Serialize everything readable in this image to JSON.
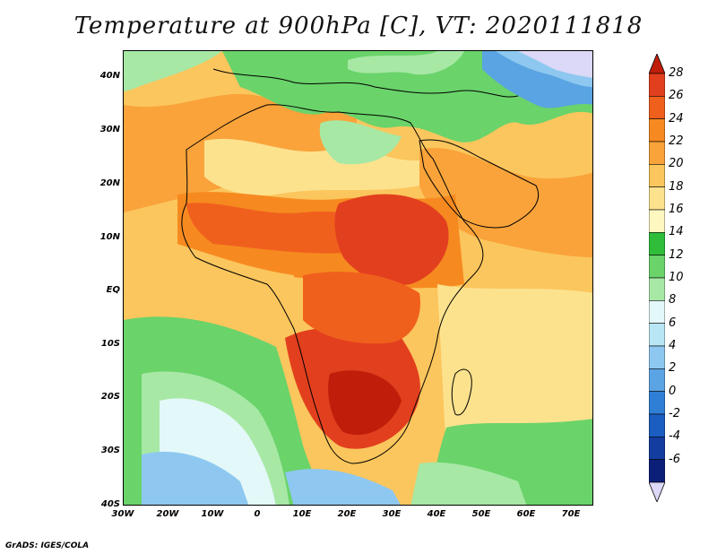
{
  "title": "Temperature at 900hPa [C], VT: 2020111818",
  "credit": "GrADS: IGES/COLA",
  "map": {
    "lat_range": [
      -40,
      45
    ],
    "lon_range": [
      -30,
      75
    ],
    "lat_ticks": [
      "40N",
      "30N",
      "20N",
      "10N",
      "EQ",
      "10S",
      "20S",
      "30S",
      "40S"
    ],
    "lon_ticks": [
      "30W",
      "20W",
      "10W",
      "0",
      "10E",
      "20E",
      "30E",
      "40E",
      "50E",
      "60E",
      "70E"
    ],
    "region": "Africa",
    "variable": "temperature"
  },
  "colorbar": {
    "labels": [
      "28",
      "26",
      "24",
      "22",
      "20",
      "18",
      "16",
      "14",
      "12",
      "10",
      "8",
      "6",
      "4",
      "2",
      "0",
      "-2",
      "-4",
      "-6"
    ],
    "colors": [
      "#e23f1e",
      "#f0601d",
      "#f68a20",
      "#f9a33a",
      "#fbc65d",
      "#fde28e",
      "#fef7c0",
      "#2fbd3a",
      "#6ad36a",
      "#a7e8a5",
      "#e3f8f8",
      "#b8e6f5",
      "#8ec8f0",
      "#5aa4e3",
      "#2f7fd6",
      "#1b5dc0",
      "#133ea0",
      "#0c1f78"
    ],
    "extension_colors": [
      "#c01e0b",
      "#dcd8f7"
    ]
  }
}
